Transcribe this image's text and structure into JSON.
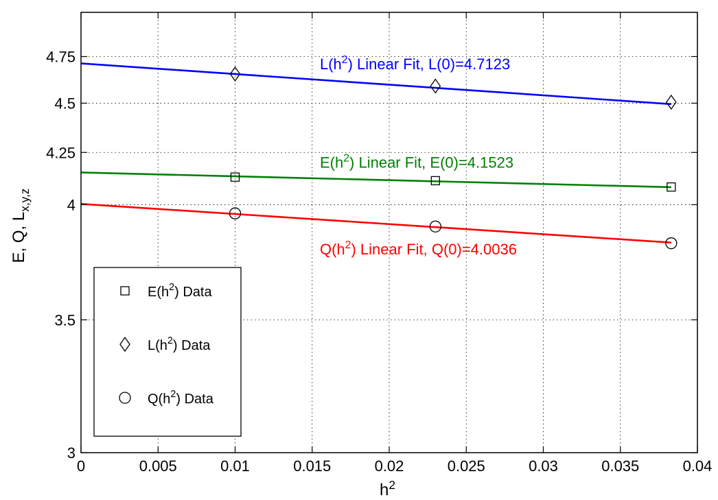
{
  "chart_data": {
    "type": "scatter",
    "xlabel": {
      "base": "h",
      "sup": "2"
    },
    "ylabel": {
      "base": "E, Q, L",
      "sub": "x,y,z"
    },
    "xlim": [
      0,
      0.04
    ],
    "ylim": [
      3,
      5
    ],
    "yscale": "log",
    "grid": true,
    "x_ticks": [
      0,
      0.005,
      0.01,
      0.015,
      0.02,
      0.025,
      0.03,
      0.035,
      0.04
    ],
    "x_tick_labels": [
      "0",
      "0.005",
      "0.01",
      "0.015",
      "0.02",
      "0.025",
      "0.03",
      "0.035",
      "0.04"
    ],
    "y_ticks": [
      3,
      3.5,
      4,
      4.25,
      4.5,
      4.75
    ],
    "y_tick_labels": [
      "3",
      "3.5",
      "4",
      "4.25",
      "4.5",
      "4.75"
    ],
    "series": [
      {
        "name": "L(h2) Data",
        "label": {
          "pre": "L(h",
          "sup": "2",
          "post": ") Data"
        },
        "marker": "diamond",
        "x": [
          0.01,
          0.023,
          0.0383
        ],
        "y": [
          4.655,
          4.59,
          4.505
        ]
      },
      {
        "name": "E(h2) Data",
        "label": {
          "pre": "E(h",
          "sup": "2",
          "post": ") Data"
        },
        "marker": "square",
        "x": [
          0.01,
          0.023,
          0.0383
        ],
        "y": [
          4.13,
          4.113,
          4.083
        ]
      },
      {
        "name": "Q(h2) Data",
        "label": {
          "pre": "Q(h",
          "sup": "2",
          "post": ") Data"
        },
        "marker": "circle",
        "x": [
          0.01,
          0.023,
          0.0383
        ],
        "y": [
          3.96,
          3.9,
          3.825
        ]
      }
    ],
    "fits": [
      {
        "color": "#0000ff",
        "x": [
          0,
          0.0383
        ],
        "y": [
          4.7123,
          4.495
        ],
        "label": {
          "pre": "L(h",
          "sup": "2",
          "post": ") Linear Fit, L(0)=4.7123"
        },
        "label_at": {
          "x": 0.0155,
          "y": 4.68
        }
      },
      {
        "color": "#008000",
        "x": [
          0,
          0.0383
        ],
        "y": [
          4.1523,
          4.082
        ],
        "label": {
          "pre": "E(h",
          "sup": "2",
          "post": ") Linear Fit, E(0)=4.1523"
        },
        "label_at": {
          "x": 0.0155,
          "y": 4.175
        }
      },
      {
        "color": "#ff0000",
        "x": [
          0,
          0.0383
        ],
        "y": [
          4.0036,
          3.828
        ],
        "label": {
          "pre": "Q(h",
          "sup": "2",
          "post": ") Linear Fit, Q(0)=4.0036"
        },
        "label_at": {
          "x": 0.0155,
          "y": 3.775
        }
      }
    ],
    "legend": {
      "placement": "lower-left"
    }
  }
}
